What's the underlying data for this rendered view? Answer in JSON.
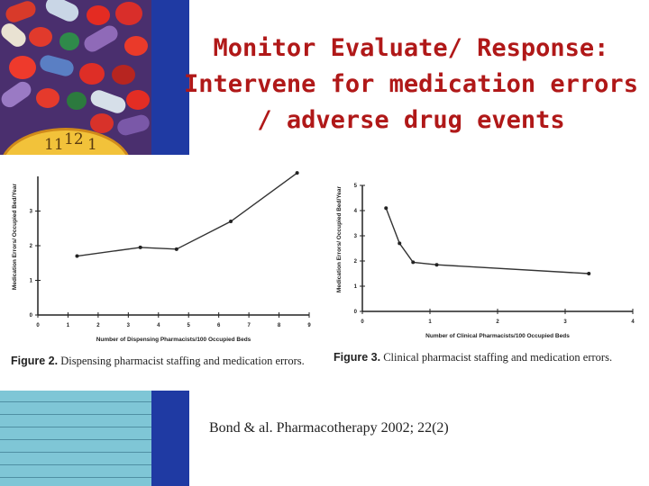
{
  "slide": {
    "title_lines": [
      "Monitor Evaluate/ Response:",
      "Intervene for medication errors",
      "/ adverse drug events"
    ],
    "citation": "Bond & al. Pharmacotherapy 2002; 22(2)",
    "colors": {
      "title": "#b01818",
      "accent_bar": "#1f3aa3",
      "clock": "#f2c23a",
      "form": "#7fc6d6"
    },
    "photo_top": {
      "icon": "pills-and-clock-photo",
      "clock_numbers": [
        "11",
        "12",
        "1"
      ]
    },
    "photo_bottom": {
      "icon": "medical-form-photo"
    }
  },
  "chart_data": [
    {
      "type": "line",
      "figure_label": "Figure 2.",
      "caption": "Dispensing pharmacist staffing and medication errors.",
      "xlabel": "Number of Dispensing Pharmacists/100 Occupied Beds",
      "ylabel": "Medication Errors/ Occupied Bed/Year",
      "xlim": [
        0,
        9
      ],
      "ylim": [
        0,
        4
      ],
      "x_ticks": [
        "0",
        "1",
        "2",
        "3",
        "4",
        "5",
        "6",
        "7",
        "8",
        "9"
      ],
      "y_ticks": [
        "0",
        "1",
        "2",
        "3"
      ],
      "x": [
        1.3,
        3.4,
        4.6,
        6.4,
        8.6
      ],
      "y": [
        1.7,
        1.95,
        1.9,
        2.7,
        4.1
      ]
    },
    {
      "type": "line",
      "figure_label": "Figure 3.",
      "caption": "Clinical pharmacist staffing and medication errors.",
      "xlabel": "Number of Clinical Pharmacists/100 Occupied Beds",
      "ylabel": "Medication Errors/ Occupied Bed/Year",
      "xlim": [
        0,
        4
      ],
      "ylim": [
        0,
        5
      ],
      "x_ticks": [
        "0",
        "1",
        "2",
        "3",
        "4"
      ],
      "y_ticks": [
        "0",
        "1",
        "2",
        "3",
        "4",
        "5"
      ],
      "x": [
        0.35,
        0.55,
        0.75,
        1.1,
        3.35
      ],
      "y": [
        4.1,
        2.7,
        1.95,
        1.85,
        1.5
      ]
    }
  ]
}
